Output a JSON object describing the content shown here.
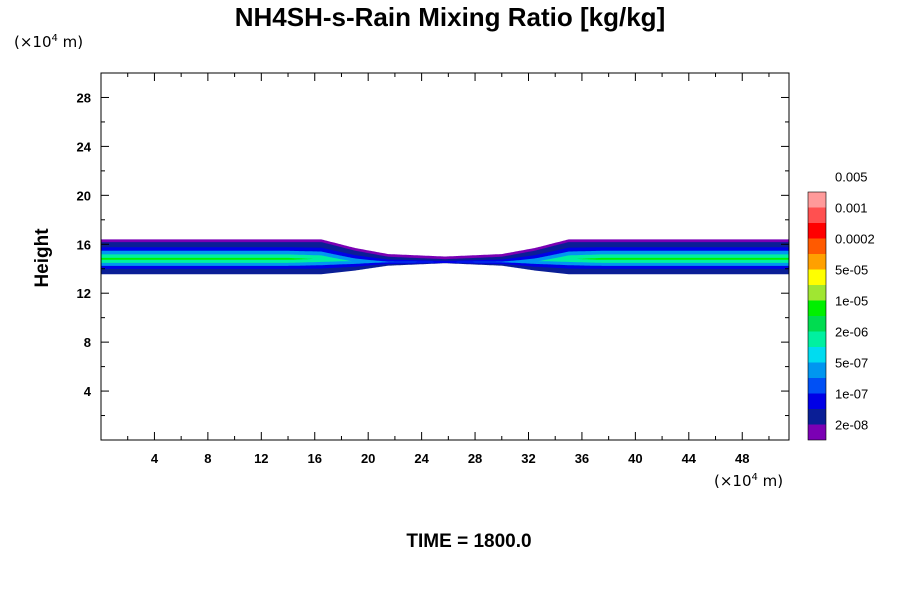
{
  "chart_data": {
    "type": "heatmap",
    "title": "NH4SH-s-Rain Mixing Ratio [kg/kg]",
    "ylabel": "Height",
    "xlabel": "",
    "x_unit": {
      "prefix": "(×10",
      "exp": "4",
      "suffix": " m)"
    },
    "y_unit": {
      "prefix": "(×10",
      "exp": "4",
      "suffix": " m)"
    },
    "xlim": [
      0,
      51.5
    ],
    "ylim": [
      0,
      30
    ],
    "x_ticks": [
      4,
      8,
      12,
      16,
      20,
      24,
      28,
      32,
      36,
      40,
      44,
      48
    ],
    "y_ticks": [
      4,
      8,
      12,
      16,
      20,
      24,
      28
    ],
    "grid": false,
    "legend_placement": "right",
    "colorbar": {
      "colors": [
        "#7b00b4",
        "#0a1e96",
        "#0000e6",
        "#0050f5",
        "#0096f0",
        "#00dcf0",
        "#00f0a0",
        "#00dc50",
        "#00f000",
        "#a0e632",
        "#ffff00",
        "#ffa000",
        "#ff5a00",
        "#ff0000",
        "#ff5050",
        "#ff9a9a"
      ],
      "labels": [
        {
          "index": 1,
          "text": "2e-08"
        },
        {
          "index": 3,
          "text": "1e-07"
        },
        {
          "index": 5,
          "text": "5e-07"
        },
        {
          "index": 7,
          "text": "2e-06"
        },
        {
          "index": 9,
          "text": "1e-05"
        },
        {
          "index": 11,
          "text": "5e-05"
        },
        {
          "index": 13,
          "text": "0.0002"
        },
        {
          "index": 15,
          "text": "0.001"
        },
        {
          "index": 17,
          "text": "0.005"
        }
      ]
    },
    "layer": {
      "x_breaks": [
        0,
        14,
        16.5,
        19,
        21.5,
        25.75,
        30,
        32.5,
        35,
        37.5,
        51.5
      ],
      "top": [
        16.3,
        16.3,
        16.3,
        15.6,
        15.1,
        14.9,
        15.1,
        15.6,
        16.3,
        16.3,
        16.3
      ],
      "bottom": [
        13.6,
        13.6,
        13.6,
        13.9,
        14.3,
        14.5,
        14.3,
        13.9,
        13.6,
        13.6,
        13.6
      ],
      "intensity": [
        3.1,
        3.1,
        2.7,
        1.7,
        1.0,
        0.8,
        1.0,
        1.7,
        2.7,
        3.1,
        3.1
      ],
      "band_colors": [
        "#0000e6",
        "#0096f0",
        "#00f0a0",
        "#00f000",
        "#a0e632",
        "#ffff00"
      ]
    },
    "time_label": "TIME = 1800.0"
  }
}
